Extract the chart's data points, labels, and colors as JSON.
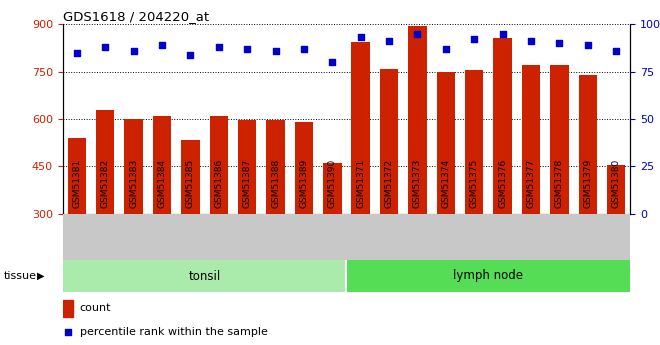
{
  "title": "GDS1618 / 204220_at",
  "samples": [
    "GSM51381",
    "GSM51382",
    "GSM51383",
    "GSM51384",
    "GSM51385",
    "GSM51386",
    "GSM51387",
    "GSM51388",
    "GSM51389",
    "GSM51390",
    "GSM51371",
    "GSM51372",
    "GSM51373",
    "GSM51374",
    "GSM51375",
    "GSM51376",
    "GSM51377",
    "GSM51378",
    "GSM51379",
    "GSM51380"
  ],
  "counts": [
    540,
    628,
    600,
    608,
    535,
    610,
    597,
    597,
    590,
    462,
    845,
    758,
    893,
    748,
    756,
    857,
    770,
    772,
    740,
    454
  ],
  "percentiles": [
    85,
    88,
    86,
    89,
    84,
    88,
    87,
    86,
    87,
    80,
    93,
    91,
    95,
    87,
    92,
    95,
    91,
    90,
    89,
    86
  ],
  "tissue_groups": [
    {
      "label": "tonsil",
      "start": 0,
      "end": 10
    },
    {
      "label": "lymph node",
      "start": 10,
      "end": 20
    }
  ],
  "ylim_left": [
    300,
    900
  ],
  "ylim_right": [
    0,
    100
  ],
  "yticks_left": [
    300,
    450,
    600,
    750,
    900
  ],
  "yticks_right": [
    0,
    25,
    50,
    75,
    100
  ],
  "ytick_right_labels": [
    "0",
    "25",
    "50",
    "75",
    "100%"
  ],
  "bar_color": "#cc2200",
  "dot_color": "#0000cc",
  "tonsil_color": "#aaeaaa",
  "lymph_color": "#55dd55",
  "bg_tick_color": "#c8c8c8",
  "label_count": "count",
  "label_percentile": "percentile rank within the sample",
  "tissue_label": "tissue"
}
